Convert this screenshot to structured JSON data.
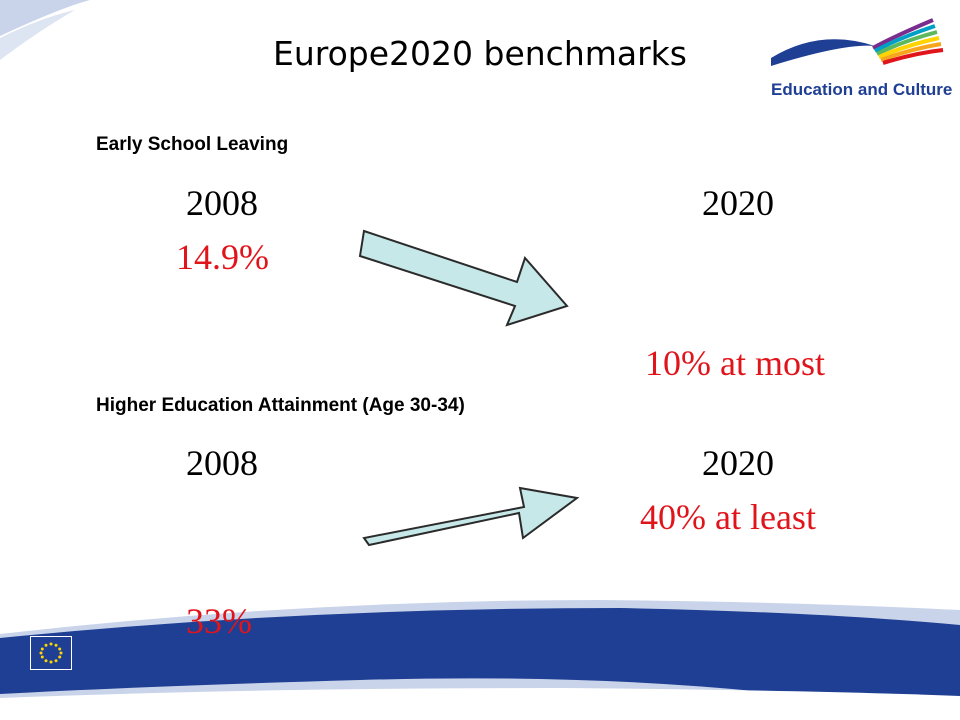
{
  "title": "Europe2020  benchmarks",
  "logo": {
    "text": "Education and Culture",
    "colors": [
      "#1f3f94",
      "#e0141b",
      "#f7a51c",
      "#ffd400",
      "#5cb85c",
      "#00a0c6",
      "#7b2d8e"
    ]
  },
  "sections": [
    {
      "label": "Early School Leaving",
      "year_from": "2008",
      "year_to": "2020",
      "value_from": "14.9%",
      "value_to": "10% at most"
    },
    {
      "label": "Higher Education Attainment (Age 30-34)",
      "year_from": "2008",
      "year_to": "2020",
      "value_from": "33%",
      "value_to": "40% at least"
    }
  ],
  "colors": {
    "value_text": "#e0141b",
    "arrow_fill": "#c6e8e8",
    "arrow_stroke": "#2b2b2b",
    "band_dark": "#1f3f94",
    "band_light": "#c9d4ea",
    "eu_flag": "#1f3f94",
    "eu_stars": "#ffd400"
  }
}
